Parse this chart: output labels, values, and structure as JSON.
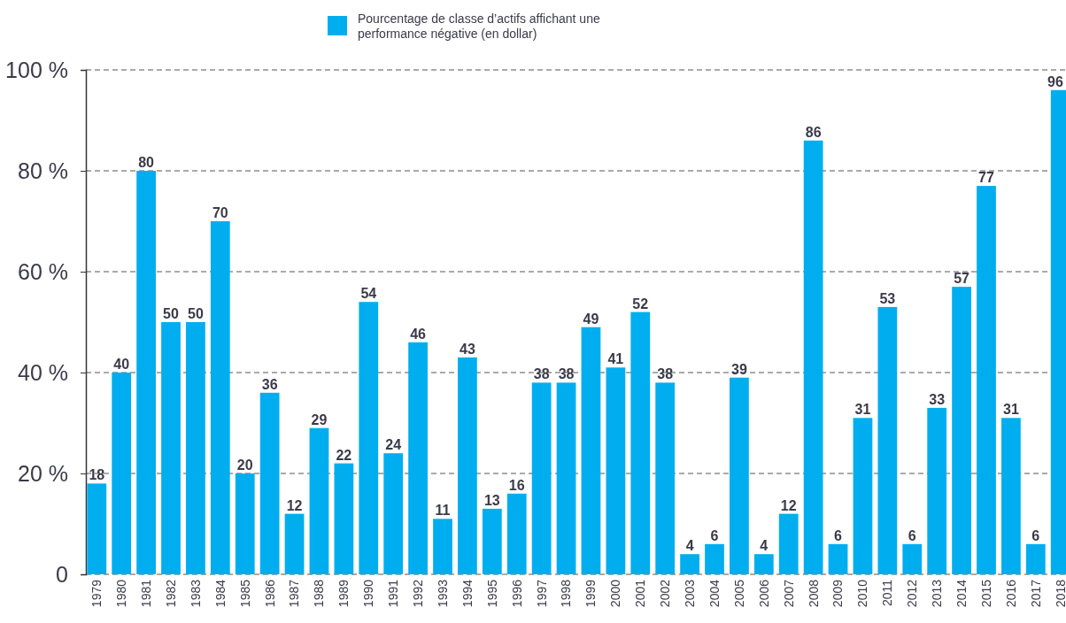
{
  "chart_data": {
    "type": "bar",
    "categories": [
      "1979",
      "1980",
      "1981",
      "1982",
      "1983",
      "1984",
      "1985",
      "1986",
      "1987",
      "1988",
      "1989",
      "1990",
      "1991",
      "1992",
      "1993",
      "1994",
      "1995",
      "1996",
      "1997",
      "1998",
      "1999",
      "2000",
      "2001",
      "2002",
      "2003",
      "2004",
      "2005",
      "2006",
      "2007",
      "2008",
      "2009",
      "2010",
      "2011",
      "2012",
      "2013",
      "2014",
      "2015",
      "2016",
      "2017",
      "2018"
    ],
    "series": [
      {
        "name": "Pourcentage de classe d’actifs affichant une performance négative (en dollar)",
        "color": "#00aeef",
        "values": [
          18,
          40,
          80,
          50,
          50,
          70,
          20,
          36,
          12,
          29,
          22,
          54,
          24,
          46,
          11,
          43,
          13,
          16,
          38,
          38,
          49,
          41,
          52,
          38,
          4,
          6,
          39,
          4,
          12,
          86,
          6,
          31,
          53,
          6,
          33,
          57,
          77,
          31,
          6,
          96
        ]
      }
    ],
    "ylim": [
      0,
      100
    ],
    "yticks": [
      0,
      {
        "value": 20,
        "label": "20 %"
      },
      {
        "value": 40,
        "label": "40 %"
      },
      {
        "value": 60,
        "label": "60 %"
      },
      {
        "value": 80,
        "label": "80 %"
      },
      {
        "value": 100,
        "label": "100 %"
      }
    ],
    "grid": "y",
    "legend": "top",
    "data_labels": true
  }
}
